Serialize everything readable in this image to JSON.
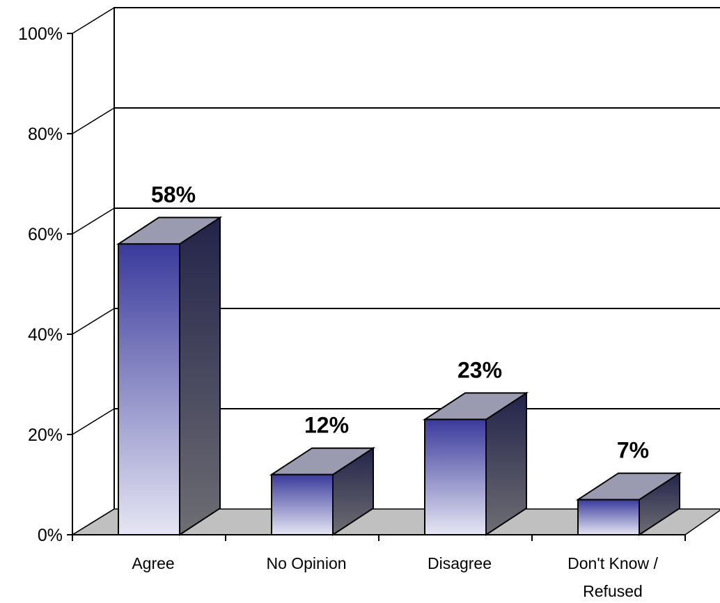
{
  "chart_data": {
    "type": "bar",
    "categories": [
      "Agree",
      "No Opinion",
      "Disagree",
      "Don't Know / Refused"
    ],
    "category_lines": [
      [
        "Agree"
      ],
      [
        "No Opinion"
      ],
      [
        "Disagree"
      ],
      [
        "Don't Know /",
        "Refused"
      ]
    ],
    "values": [
      58,
      12,
      23,
      7
    ],
    "data_labels": [
      "58%",
      "12%",
      "23%",
      "7%"
    ],
    "y_ticks": [
      "0%",
      "20%",
      "40%",
      "60%",
      "80%",
      "100%"
    ],
    "ylim": [
      0,
      100
    ],
    "grid": true,
    "three_d": true
  },
  "colors": {
    "bar_front_top": "#3a3a9c",
    "bar_front_bottom": "#e6e6f4",
    "bar_side_top": "#23234a",
    "bar_side_bottom": "#6e6e74",
    "bar_top_face": "#9a9ab0",
    "floor": "#c0c0c0",
    "gridline": "#000000"
  }
}
